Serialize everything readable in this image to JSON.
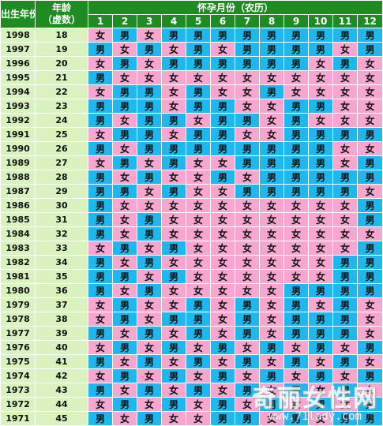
{
  "header": {
    "birth_year_label": "出生年份",
    "age_label_line1": "年龄",
    "age_label_line2": "（虚数）",
    "conception_label": "怀孕月份（农历）",
    "months": [
      "1",
      "2",
      "3",
      "4",
      "5",
      "6",
      "7",
      "8",
      "9",
      "10",
      "11",
      "12"
    ]
  },
  "legend": {
    "boy": "男",
    "girl": "女",
    "boy_color": "#1fb8ee",
    "girl_color": "#f7a6cf",
    "header_color": "#1e8c22",
    "year_cell_color": "#d9f2c0"
  },
  "rows": [
    {
      "year": "1998",
      "age": "18",
      "cells": [
        "女",
        "男",
        "女",
        "男",
        "男",
        "男",
        "男",
        "男",
        "男",
        "男",
        "男",
        "男"
      ]
    },
    {
      "year": "1997",
      "age": "19",
      "cells": [
        "男",
        "女",
        "男",
        "女",
        "男",
        "女",
        "男",
        "男",
        "男",
        "男",
        "女",
        "男"
      ]
    },
    {
      "year": "1996",
      "age": "20",
      "cells": [
        "女",
        "男",
        "女",
        "男",
        "男",
        "男",
        "男",
        "男",
        "男",
        "女",
        "男",
        "女"
      ]
    },
    {
      "year": "1995",
      "age": "21",
      "cells": [
        "男",
        "女",
        "女",
        "女",
        "女",
        "女",
        "女",
        "女",
        "女",
        "女",
        "女",
        "女"
      ]
    },
    {
      "year": "1994",
      "age": "22",
      "cells": [
        "女",
        "男",
        "男",
        "女",
        "男",
        "女",
        "女",
        "男",
        "女",
        "女",
        "女",
        "女"
      ]
    },
    {
      "year": "1993",
      "age": "23",
      "cells": [
        "男",
        "男",
        "男",
        "女",
        "男",
        "男",
        "女",
        "女",
        "男",
        "男",
        "女",
        "女"
      ]
    },
    {
      "year": "1992",
      "age": "24",
      "cells": [
        "男",
        "女",
        "男",
        "男",
        "女",
        "男",
        "男",
        "女",
        "男",
        "女",
        "女",
        "女"
      ]
    },
    {
      "year": "1991",
      "age": "25",
      "cells": [
        "女",
        "男",
        "男",
        "女",
        "男",
        "男",
        "女",
        "女",
        "男",
        "男",
        "男",
        "男"
      ]
    },
    {
      "year": "1990",
      "age": "26",
      "cells": [
        "男",
        "女",
        "男",
        "男",
        "男",
        "男",
        "男",
        "男",
        "男",
        "男",
        "女",
        "女"
      ]
    },
    {
      "year": "1989",
      "age": "27",
      "cells": [
        "女",
        "男",
        "女",
        "男",
        "女",
        "女",
        "男",
        "男",
        "男",
        "男",
        "女",
        "男"
      ]
    },
    {
      "year": "1988",
      "age": "28",
      "cells": [
        "男",
        "女",
        "男",
        "女",
        "女",
        "男",
        "女",
        "男",
        "男",
        "男",
        "男",
        "男"
      ]
    },
    {
      "year": "1987",
      "age": "29",
      "cells": [
        "男",
        "男",
        "女",
        "男",
        "女",
        "女",
        "男",
        "男",
        "男",
        "男",
        "男",
        "女"
      ]
    },
    {
      "year": "1986",
      "age": "30",
      "cells": [
        "男",
        "女",
        "女",
        "女",
        "女",
        "女",
        "女",
        "女",
        "女",
        "女",
        "女",
        "男"
      ]
    },
    {
      "year": "1985",
      "age": "31",
      "cells": [
        "男",
        "女",
        "男",
        "女",
        "女",
        "女",
        "女",
        "女",
        "女",
        "女",
        "女",
        "男"
      ]
    },
    {
      "year": "1984",
      "age": "32",
      "cells": [
        "男",
        "女",
        "男",
        "女",
        "女",
        "女",
        "女",
        "女",
        "女",
        "女",
        "女",
        "女"
      ]
    },
    {
      "year": "1983",
      "age": "33",
      "cells": [
        "女",
        "男",
        "女",
        "男",
        "女",
        "女",
        "女",
        "女",
        "女",
        "女",
        "女",
        "男"
      ]
    },
    {
      "year": "1982",
      "age": "34",
      "cells": [
        "男",
        "女",
        "男",
        "女",
        "女",
        "女",
        "女",
        "女",
        "女",
        "女",
        "男",
        "男"
      ]
    },
    {
      "year": "1981",
      "age": "35",
      "cells": [
        "男",
        "男",
        "女",
        "男",
        "女",
        "女",
        "女",
        "女",
        "女",
        "女",
        "男",
        "男"
      ]
    },
    {
      "year": "1980",
      "age": "36",
      "cells": [
        "男",
        "女",
        "男",
        "女",
        "女",
        "女",
        "女",
        "女",
        "男",
        "男",
        "男",
        "男"
      ]
    },
    {
      "year": "1979",
      "age": "37",
      "cells": [
        "女",
        "男",
        "女",
        "女",
        "男",
        "女",
        "男",
        "女",
        "男",
        "女",
        "男",
        "女"
      ]
    },
    {
      "year": "1978",
      "age": "38",
      "cells": [
        "女",
        "男",
        "女",
        "男",
        "男",
        "女",
        "男",
        "女",
        "男",
        "男",
        "男",
        "女"
      ]
    },
    {
      "year": "1977",
      "age": "39",
      "cells": [
        "男",
        "女",
        "男",
        "女",
        "男",
        "女",
        "男",
        "女",
        "男",
        "男",
        "男",
        "女"
      ]
    },
    {
      "year": "1976",
      "age": "40",
      "cells": [
        "女",
        "男",
        "女",
        "男",
        "女",
        "男",
        "女",
        "男",
        "女",
        "男",
        "女",
        "男"
      ]
    },
    {
      "year": "1975",
      "age": "41",
      "cells": [
        "男",
        "女",
        "男",
        "女",
        "男",
        "女",
        "男",
        "女",
        "男",
        "女",
        "男",
        "女"
      ]
    },
    {
      "year": "1974",
      "age": "42",
      "cells": [
        "女",
        "男",
        "女",
        "男",
        "女",
        "男",
        "女",
        "男",
        "女",
        "男",
        "女",
        "男"
      ]
    },
    {
      "year": "1973",
      "age": "43",
      "cells": [
        "男",
        "女",
        "男",
        "女",
        "男",
        "女",
        "男",
        "女",
        "男",
        "女",
        "男",
        "女"
      ]
    },
    {
      "year": "1972",
      "age": "44",
      "cells": [
        "女",
        "男",
        "女",
        "男",
        "女",
        "男",
        "女",
        "男",
        "女",
        "男",
        "女",
        "男"
      ]
    },
    {
      "year": "1971",
      "age": "45",
      "cells": [
        "男",
        "女",
        "男",
        "女",
        "女",
        "男",
        "男",
        "女",
        "男",
        "女",
        "男",
        "男"
      ]
    }
  ],
  "watermark": {
    "site_name": "奇丽女性网",
    "url": "www.71lady.com"
  }
}
